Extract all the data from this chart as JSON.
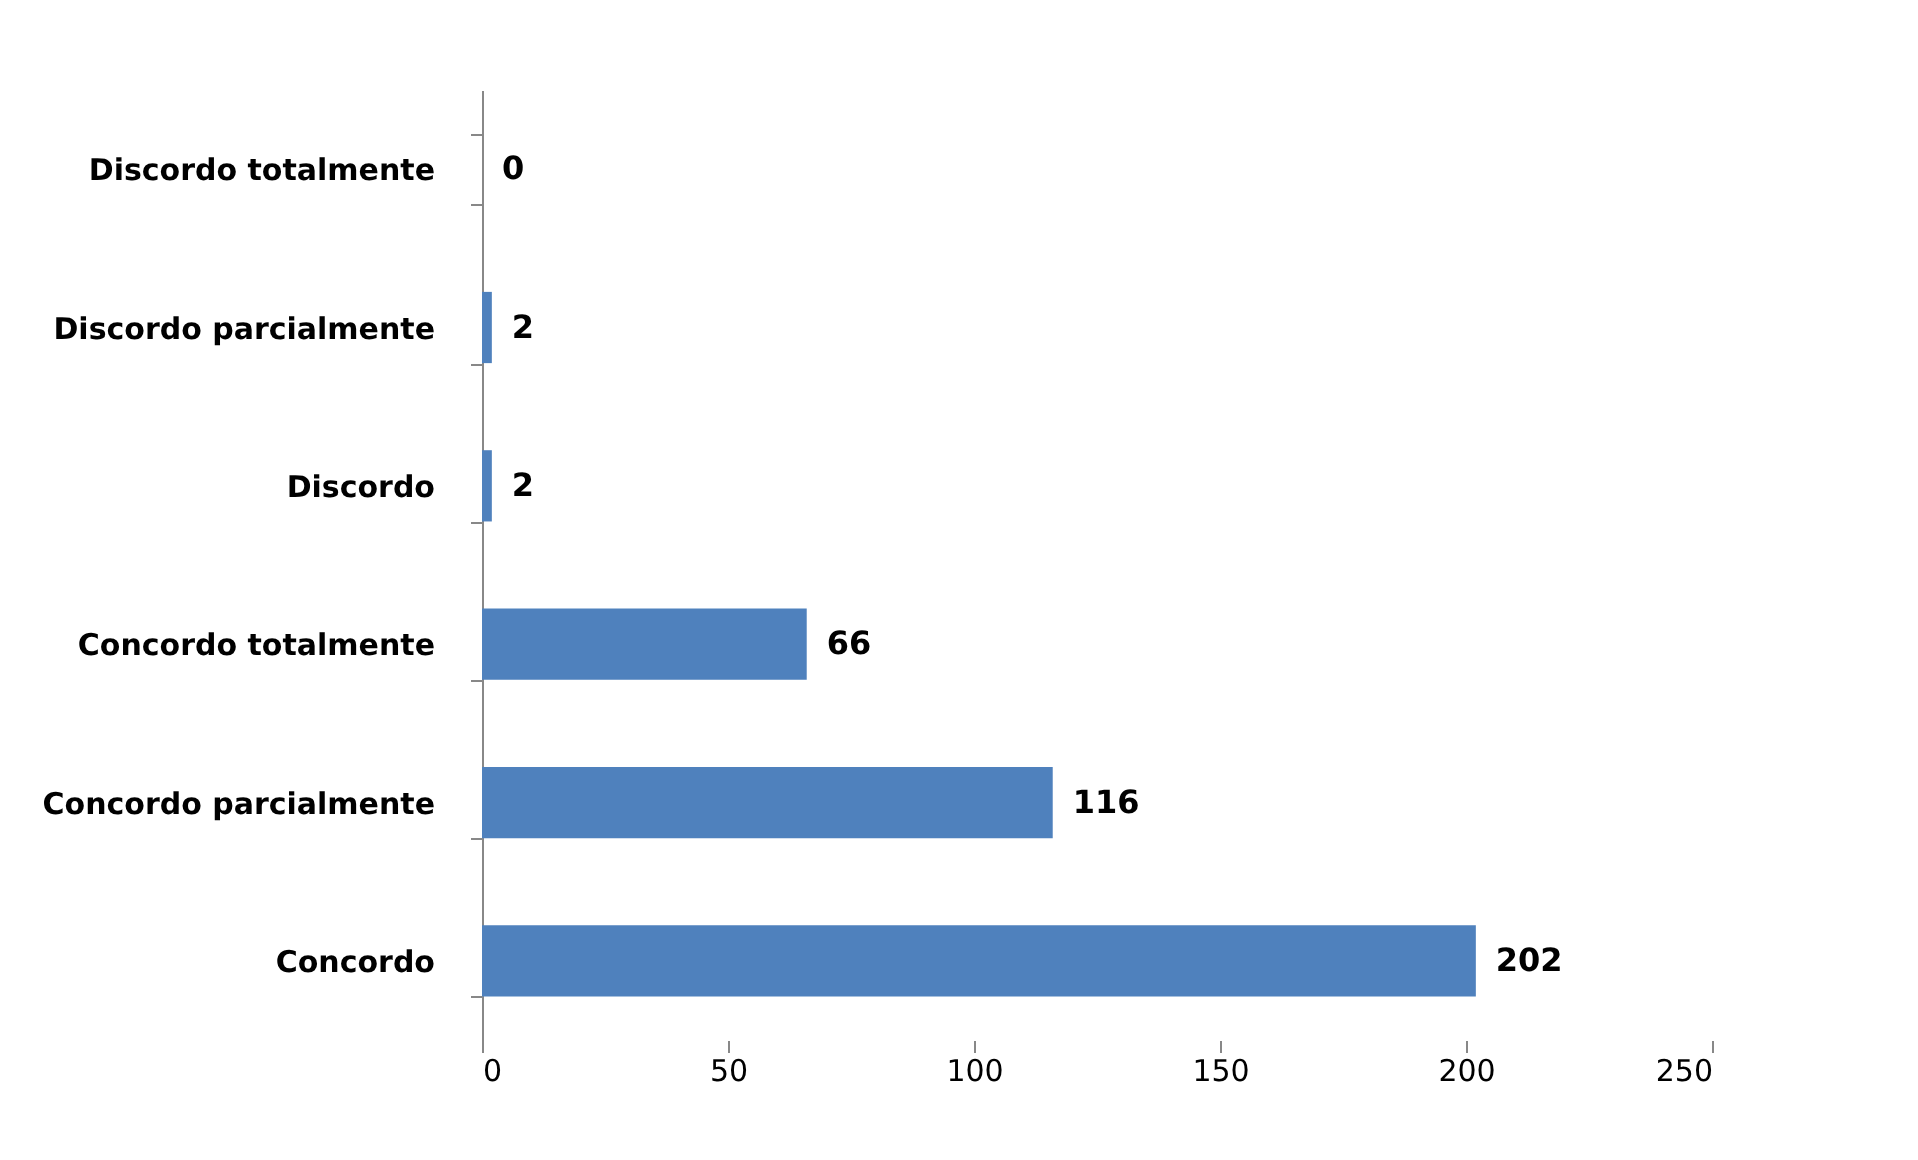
{
  "chart_data": {
    "type": "bar",
    "orientation": "horizontal",
    "categories": [
      "Discordo totalmente",
      "Discordo parcialmente",
      "Discordo",
      "Concordo totalmente",
      "Concordo parcialmente",
      "Concordo"
    ],
    "values": [
      0,
      2,
      2,
      66,
      116,
      202
    ],
    "color": "#4f81bd",
    "xlim": [
      0,
      250
    ],
    "xticks": [
      0,
      50,
      100,
      150,
      200,
      250
    ],
    "grid": false,
    "data_labels": true
  }
}
